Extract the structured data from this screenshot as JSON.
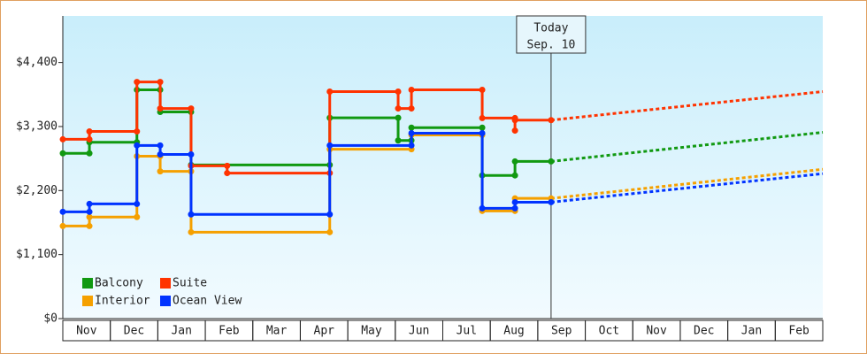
{
  "chart_data": {
    "type": "step-line",
    "categories": [
      "Nov",
      "Dec",
      "Jan",
      "Feb",
      "Mar",
      "Apr",
      "May",
      "Jun",
      "Jul",
      "Aug",
      "Sep",
      "Oct",
      "Nov",
      "Dec",
      "Jan",
      "Feb"
    ],
    "xlim": [
      0,
      16
    ],
    "ylim": [
      0,
      5200
    ],
    "yticks": [
      {
        "value": 0,
        "label": "$0"
      },
      {
        "value": 1100,
        "label": "$1,100"
      },
      {
        "value": 2200,
        "label": "$2,200"
      },
      {
        "value": 3300,
        "label": "$3,300"
      },
      {
        "value": 4400,
        "label": "$4,400"
      }
    ],
    "today": {
      "x": 10.28,
      "label": "Today",
      "date": "Sep. 10"
    },
    "legend": "lower left",
    "series": [
      {
        "name": "Interior",
        "color": "#f5a000",
        "x": [
          0,
          0.56,
          0.56,
          1.56,
          1.56,
          2.05,
          2.05,
          2.7,
          2.7,
          5.62,
          5.62,
          7.34,
          7.34,
          8.83,
          8.83,
          9.52,
          9.52,
          10.28
        ],
        "values": [
          1590,
          1590,
          1745,
          1745,
          2790,
          2790,
          2530,
          2530,
          1485,
          1485,
          2910,
          2910,
          3155,
          3155,
          1850,
          1850,
          2065,
          2065
        ],
        "forecast": {
          "x": [
            10.28,
            16
          ],
          "values": [
            2065,
            2565
          ]
        }
      },
      {
        "name": "Balcony",
        "color": "#119911",
        "x": [
          0,
          0.56,
          0.56,
          1.56,
          1.56,
          2.05,
          2.05,
          2.7,
          2.7,
          5.62,
          5.62,
          7.06,
          7.06,
          7.34,
          7.34,
          8.83,
          8.83,
          9.52,
          9.52,
          10.28
        ],
        "values": [
          2840,
          2840,
          3030,
          3030,
          3930,
          3930,
          3550,
          3550,
          2640,
          2640,
          3450,
          3450,
          3060,
          3060,
          3280,
          3280,
          2460,
          2460,
          2700,
          2700
        ],
        "forecast": {
          "x": [
            10.28,
            16
          ],
          "values": [
            2700,
            3200
          ]
        }
      },
      {
        "name": "Suite",
        "color": "#ff3300",
        "x": [
          0,
          0.56,
          0.56,
          1.56,
          1.56,
          2.05,
          2.05,
          2.7,
          2.7,
          3.46,
          3.46,
          5.62,
          5.62,
          7.06,
          7.06,
          7.34,
          7.34,
          8.83,
          8.83,
          9.52,
          9.52,
          9.52,
          10.28
        ],
        "values": [
          3080,
          3080,
          3215,
          3215,
          4065,
          4065,
          3610,
          3610,
          2625,
          2625,
          2500,
          2500,
          3900,
          3900,
          3610,
          3610,
          3930,
          3930,
          3445,
          3445,
          3230,
          3410,
          3410
        ],
        "forecast": {
          "x": [
            10.28,
            16
          ],
          "values": [
            3410,
            3900
          ]
        }
      },
      {
        "name": "Ocean View",
        "color": "#0033ff",
        "x": [
          0,
          0.56,
          0.56,
          1.56,
          1.56,
          2.05,
          2.05,
          2.7,
          2.7,
          5.62,
          5.62,
          7.34,
          7.34,
          8.83,
          8.83,
          9.52,
          9.52,
          10.28
        ],
        "values": [
          1835,
          1835,
          1970,
          1970,
          2975,
          2975,
          2820,
          2820,
          1790,
          1790,
          2975,
          2975,
          3185,
          3185,
          1895,
          1895,
          2000,
          2000
        ],
        "forecast": {
          "x": [
            10.28,
            16
          ],
          "values": [
            2000,
            2490
          ]
        }
      }
    ]
  }
}
